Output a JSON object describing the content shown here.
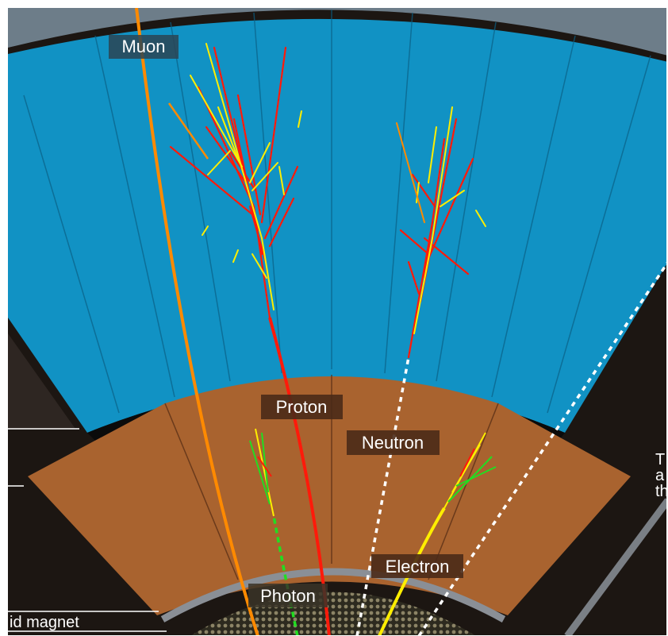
{
  "labels": {
    "muon": "Muon",
    "proton": "Proton",
    "neutron": "Neutron",
    "electron": "Electron",
    "photon": "Photon"
  },
  "left_labels": {
    "magnet": "id magnet",
    "bottom": "..."
  },
  "right_fragment": [
    "T",
    "a",
    "th"
  ],
  "colors": {
    "muon_chamber": "#1192c4",
    "hadron_calorimeter": "#a9632f",
    "electromagnetic_calorimeter": "#3a3526",
    "background": "#1c1612",
    "muon_track": "#ff8a00",
    "proton_track": "#ff1a0a",
    "electron_track": "#ffee00",
    "photon_track": "#22dd22",
    "neutral_track": "#ffffff",
    "label_box": "#4a2a18",
    "ring": "#8a8f96"
  }
}
